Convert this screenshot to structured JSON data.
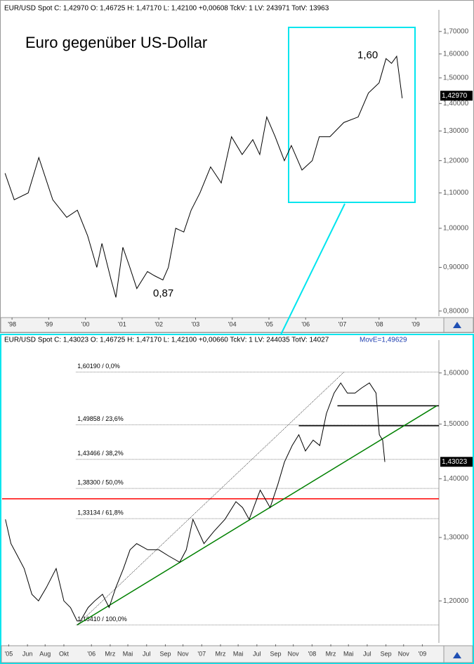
{
  "chart_data": [
    {
      "type": "line",
      "title": "EUR/USD Spot C: 1,42970 O: 1,46725 H: 1,47170 L: 1,42100 +0,00608 TckV: 1 LV: 243971 TotV: 13963",
      "annotations": [
        "Euro gegenüber US-Dollar",
        "1,60",
        "0,87"
      ],
      "last_price": {
        "value": 1.4297,
        "label": "1,42970"
      },
      "color": "#000000",
      "log": true,
      "x": [
        1997.81,
        1998.06,
        1998.44,
        1998.73,
        1999.11,
        1999.49,
        1999.78,
        2000.06,
        2000.31,
        2000.45,
        2000.7,
        2000.83,
        2001.02,
        2001.21,
        2001.4,
        2001.69,
        2001.88,
        2002.11,
        2002.26,
        2002.46,
        2002.68,
        2002.88,
        2003.12,
        2003.41,
        2003.7,
        2003.98,
        2004.27,
        2004.56,
        2004.75,
        2004.94,
        2005.17,
        2005.42,
        2005.61,
        2005.9,
        2006.18,
        2006.37,
        2006.66,
        2007.04,
        2007.43,
        2007.71,
        2008.0,
        2008.19,
        2008.34,
        2008.48,
        2008.63
      ],
      "values": [
        1.16,
        1.08,
        1.1,
        1.21,
        1.08,
        1.03,
        1.05,
        0.98,
        0.9,
        0.96,
        0.87,
        0.83,
        0.95,
        0.9,
        0.85,
        0.89,
        0.88,
        0.87,
        0.9,
        1.0,
        0.99,
        1.05,
        1.1,
        1.18,
        1.13,
        1.28,
        1.22,
        1.27,
        1.22,
        1.35,
        1.28,
        1.2,
        1.25,
        1.17,
        1.2,
        1.28,
        1.28,
        1.33,
        1.35,
        1.44,
        1.48,
        1.58,
        1.56,
        1.59,
        1.42
      ],
      "xlim": [
        1997.73,
        2009.63
      ],
      "ylim": [
        0.789,
        1.775
      ],
      "xticks": [
        {
          "value": 1998,
          "label": "'98"
        },
        {
          "value": 1999,
          "label": "'99"
        },
        {
          "value": 2000,
          "label": "'00"
        },
        {
          "value": 2001,
          "label": "'01"
        },
        {
          "value": 2002,
          "label": "'02"
        },
        {
          "value": 2003,
          "label": "'03"
        },
        {
          "value": 2004,
          "label": "'04"
        },
        {
          "value": 2005,
          "label": "'05"
        },
        {
          "value": 2006,
          "label": "'06"
        },
        {
          "value": 2007,
          "label": "'07"
        },
        {
          "value": 2008,
          "label": "'08"
        },
        {
          "value": 2009,
          "label": "'09"
        }
      ],
      "yticks": [
        {
          "value": 0.8,
          "label": "0,80000"
        },
        {
          "value": 0.9,
          "label": "0,90000"
        },
        {
          "value": 1.0,
          "label": "1,00000"
        },
        {
          "value": 1.1,
          "label": "1,10000"
        },
        {
          "value": 1.2,
          "label": "1,20000"
        },
        {
          "value": 1.3,
          "label": "1,30000"
        },
        {
          "value": 1.4,
          "label": "1,40000"
        },
        {
          "value": 1.5,
          "label": "1,50000"
        },
        {
          "value": 1.6,
          "label": "1,60000"
        },
        {
          "value": 1.7,
          "label": "1,70000"
        }
      ]
    },
    {
      "type": "line",
      "title": "EUR/USD Spot C: 1,43023 O: 1,46725 H: 1,47170 L: 1,42100 +0,00660 TckV: 1 LV: 244035 TotV: 14027",
      "subtitle": "MovE=1,49629",
      "last_price": {
        "value": 1.43023,
        "label": "1,43023"
      },
      "color": "#000000",
      "log": true,
      "x": [
        2005.22,
        2005.27,
        2005.33,
        2005.39,
        2005.46,
        2005.52,
        2005.59,
        2005.65,
        2005.68,
        2005.75,
        2005.81,
        2005.87,
        2005.9,
        2005.97,
        2006.03,
        2006.1,
        2006.16,
        2006.22,
        2006.29,
        2006.35,
        2006.41,
        2006.51,
        2006.61,
        2006.7,
        2006.8,
        2006.86,
        2006.92,
        2007.02,
        2007.11,
        2007.21,
        2007.31,
        2007.37,
        2007.43,
        2007.53,
        2007.62,
        2007.69,
        2007.75,
        2007.82,
        2007.88,
        2007.94,
        2008.01,
        2008.07,
        2008.13,
        2008.2,
        2008.26,
        2008.32,
        2008.39,
        2008.45,
        2008.52,
        2008.58,
        2008.61,
        2008.64,
        2008.66
      ],
      "values": [
        1.33,
        1.29,
        1.27,
        1.25,
        1.21,
        1.2,
        1.22,
        1.24,
        1.25,
        1.2,
        1.19,
        1.17,
        1.17,
        1.19,
        1.2,
        1.21,
        1.19,
        1.22,
        1.25,
        1.28,
        1.29,
        1.28,
        1.28,
        1.27,
        1.26,
        1.28,
        1.33,
        1.29,
        1.31,
        1.33,
        1.36,
        1.35,
        1.33,
        1.38,
        1.35,
        1.39,
        1.43,
        1.46,
        1.48,
        1.45,
        1.47,
        1.46,
        1.52,
        1.56,
        1.58,
        1.56,
        1.56,
        1.57,
        1.58,
        1.56,
        1.48,
        1.47,
        1.43
      ],
      "xlim": [
        2005.19,
        2009.15
      ],
      "ylim": [
        1.138,
        1.656
      ],
      "xticks": [
        {
          "value": 2005.25,
          "label": "'05"
        },
        {
          "value": 2005.42,
          "label": "Jun"
        },
        {
          "value": 2005.58,
          "label": "Aug"
        },
        {
          "value": 2005.75,
          "label": "Okt"
        },
        {
          "value": 2006,
          "label": "'06"
        },
        {
          "value": 2006.17,
          "label": "Mrz"
        },
        {
          "value": 2006.33,
          "label": "Mai"
        },
        {
          "value": 2006.5,
          "label": "Jul"
        },
        {
          "value": 2006.67,
          "label": "Sep"
        },
        {
          "value": 2006.83,
          "label": "Nov"
        },
        {
          "value": 2007,
          "label": "'07"
        },
        {
          "value": 2007.17,
          "label": "Mrz"
        },
        {
          "value": 2007.33,
          "label": "Mai"
        },
        {
          "value": 2007.5,
          "label": "Jul"
        },
        {
          "value": 2007.67,
          "label": "Sep"
        },
        {
          "value": 2007.83,
          "label": "Nov"
        },
        {
          "value": 2008,
          "label": "'08"
        },
        {
          "value": 2008.17,
          "label": "Mrz"
        },
        {
          "value": 2008.33,
          "label": "Mai"
        },
        {
          "value": 2008.5,
          "label": "Jul"
        },
        {
          "value": 2008.67,
          "label": "Sep"
        },
        {
          "value": 2008.83,
          "label": "Nov"
        },
        {
          "value": 2009,
          "label": "'09"
        }
      ],
      "yticks": [
        {
          "value": 1.2,
          "label": "1,20000"
        },
        {
          "value": 1.3,
          "label": "1,30000"
        },
        {
          "value": 1.4,
          "label": "1,40000"
        },
        {
          "value": 1.5,
          "label": "1,50000"
        },
        {
          "value": 1.6,
          "label": "1,60000"
        }
      ],
      "levels_from": 2005.86,
      "levels": [
        {
          "value": 1.6019,
          "label": "1,60190 / 0,0%"
        },
        {
          "value": 1.49858,
          "label": "1,49858 / 23,6%"
        },
        {
          "value": 1.43466,
          "label": "1,43466 / 38,2%"
        },
        {
          "value": 1.383,
          "label": "1,38300 / 50,0%"
        },
        {
          "value": 1.33134,
          "label": "1,33134 / 61,8%"
        },
        {
          "value": 1.1641,
          "label": "1,16410 / 100,0%"
        }
      ],
      "hlines": [
        {
          "value": 1.365,
          "color": "#ff0000"
        },
        {
          "value": 1.535,
          "from": 2008.23,
          "color": "#000000"
        },
        {
          "value": 1.497,
          "from": 2007.88,
          "color": "#000000"
        }
      ],
      "trendlines": [
        {
          "x": [
            2005.87,
            2009.13
          ],
          "values": [
            1.1641,
            1.535
          ],
          "color": "#008000"
        },
        {
          "x": [
            2005.87,
            2008.29
          ],
          "values": [
            1.1641,
            1.6019
          ],
          "color": "#000000",
          "dashed": true
        }
      ]
    }
  ]
}
